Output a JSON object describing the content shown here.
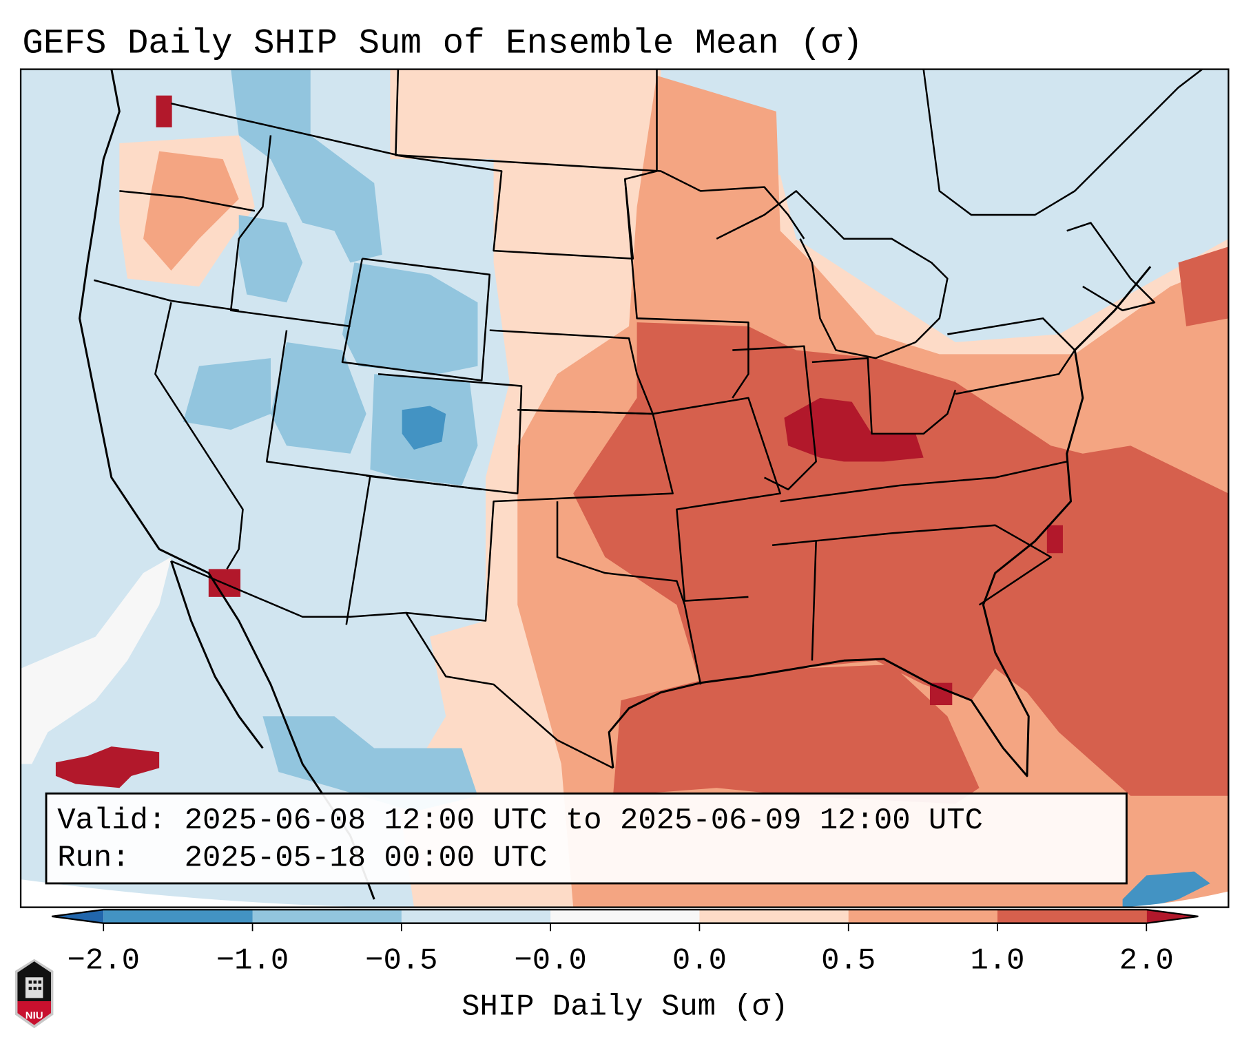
{
  "title": "GEFS Daily SHIP Sum of Ensemble Mean (σ)",
  "info_box": {
    "valid_line": "Valid: 2025-06-08 12:00 UTC to 2025-06-09 12:00 UTC",
    "run_line": "Run:   2025-05-18 00:00 UTC"
  },
  "colorbar": {
    "label": "SHIP Daily Sum (σ)",
    "ticks": [
      "−2.0",
      "−1.0",
      "−0.5",
      "−0.0",
      "0.0",
      "0.5",
      "1.0",
      "2.0"
    ],
    "colors": [
      "#4393c3",
      "#92c5de",
      "#d1e5f0",
      "#f7f7f7",
      "#fddbc7",
      "#f4a582",
      "#d6604d"
    ],
    "under_color": "#2166ac",
    "over_color": "#b2182b"
  },
  "logo": {
    "text": "NIU"
  }
}
